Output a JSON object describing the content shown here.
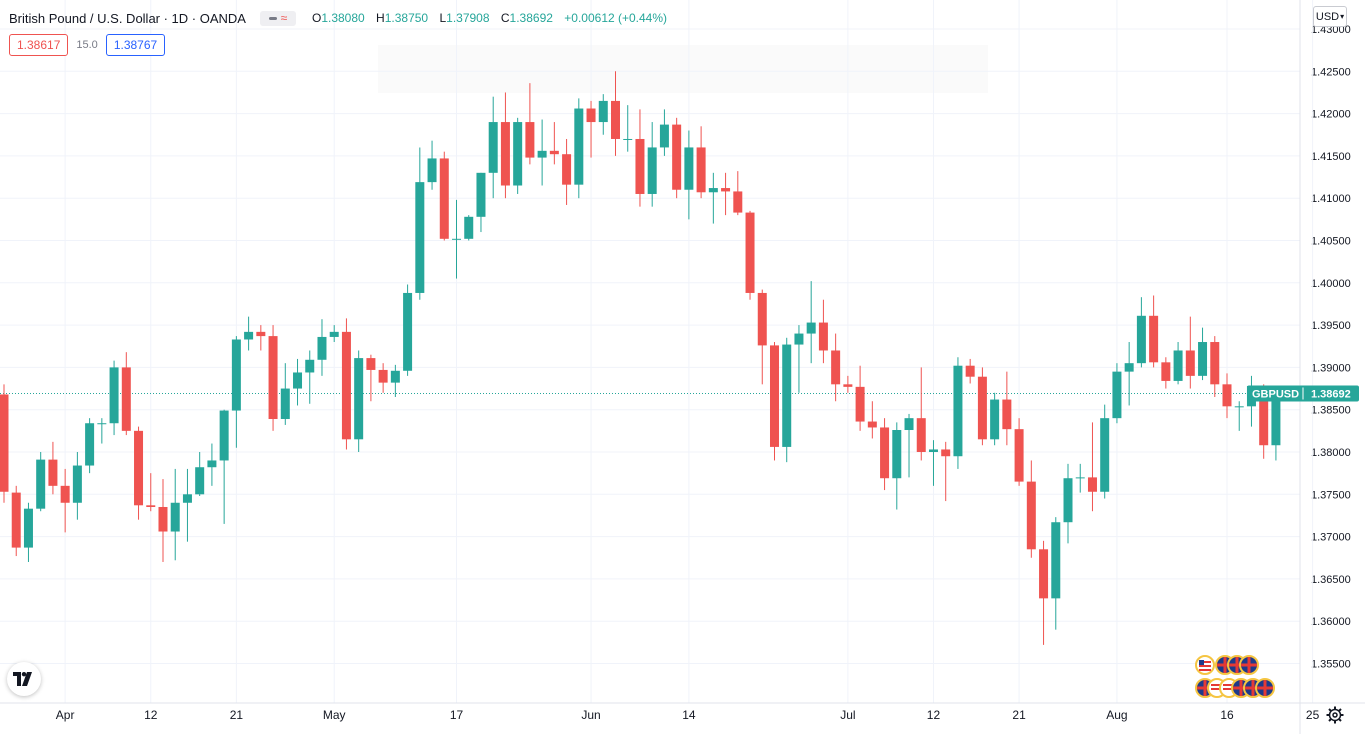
{
  "header": {
    "title": "British Pound / U.S. Dollar · 1D · OANDA",
    "ohlc": {
      "o_label": "O",
      "o": "1.38080",
      "h_label": "H",
      "h": "1.38750",
      "l_label": "L",
      "l": "1.37908",
      "c_label": "C",
      "c": "1.38692",
      "change": "+0.00612 (+0.44%)"
    }
  },
  "trade": {
    "sell": "1.38617",
    "spread": "15.0",
    "buy": "1.38767"
  },
  "currency": "USD",
  "last_price_label": {
    "symbol": "GBPUSD",
    "price": "1.38692"
  },
  "colors": {
    "up": "#26a69a",
    "down": "#ef5350",
    "grid": "#f0f3fa",
    "text": "#131722"
  },
  "icons": {
    "logo": "tradingview-logo-icon",
    "settings": "gear-icon",
    "indicators": "indicator-toggle-icon",
    "events": "economic-events-flags-icon"
  },
  "chart_data": {
    "type": "candlestick",
    "symbol": "GBPUSD",
    "ylim": [
      1.352,
      1.4305
    ],
    "y_ticks": [
      "1.43000",
      "1.42500",
      "1.42000",
      "1.41500",
      "1.41000",
      "1.40500",
      "1.40000",
      "1.39500",
      "1.39000",
      "1.38500",
      "1.38000",
      "1.37500",
      "1.37000",
      "1.36500",
      "1.36000",
      "1.35500"
    ],
    "x_ticks": [
      {
        "label": "Apr",
        "index": 5
      },
      {
        "label": "12",
        "index": 12
      },
      {
        "label": "21",
        "index": 19
      },
      {
        "label": "May",
        "index": 27
      },
      {
        "label": "17",
        "index": 37
      },
      {
        "label": "Jun",
        "index": 48
      },
      {
        "label": "14",
        "index": 56
      },
      {
        "label": "Jul",
        "index": 69
      },
      {
        "label": "12",
        "index": 76
      },
      {
        "label": "21",
        "index": 83
      },
      {
        "label": "Aug",
        "index": 91
      },
      {
        "label": "16",
        "index": 100
      },
      {
        "label": "25",
        "index": 107
      }
    ],
    "last_price": 1.38692,
    "candles": [
      {
        "o": 1.3868,
        "h": 1.388,
        "l": 1.374,
        "c": 1.3753
      },
      {
        "o": 1.3752,
        "h": 1.376,
        "l": 1.3677,
        "c": 1.3687
      },
      {
        "o": 1.3687,
        "h": 1.374,
        "l": 1.367,
        "c": 1.3733
      },
      {
        "o": 1.3733,
        "h": 1.38,
        "l": 1.373,
        "c": 1.3791
      },
      {
        "o": 1.3791,
        "h": 1.3812,
        "l": 1.375,
        "c": 1.376
      },
      {
        "o": 1.376,
        "h": 1.378,
        "l": 1.3705,
        "c": 1.374
      },
      {
        "o": 1.374,
        "h": 1.38,
        "l": 1.372,
        "c": 1.3784
      },
      {
        "o": 1.3784,
        "h": 1.384,
        "l": 1.3775,
        "c": 1.3834
      },
      {
        "o": 1.3834,
        "h": 1.384,
        "l": 1.381,
        "c": 1.3834
      },
      {
        "o": 1.3834,
        "h": 1.3908,
        "l": 1.382,
        "c": 1.39
      },
      {
        "o": 1.39,
        "h": 1.3918,
        "l": 1.382,
        "c": 1.3825
      },
      {
        "o": 1.3825,
        "h": 1.383,
        "l": 1.372,
        "c": 1.3737
      },
      {
        "o": 1.3737,
        "h": 1.3775,
        "l": 1.373,
        "c": 1.3735
      },
      {
        "o": 1.3735,
        "h": 1.3768,
        "l": 1.367,
        "c": 1.3706
      },
      {
        "o": 1.3706,
        "h": 1.378,
        "l": 1.3672,
        "c": 1.374
      },
      {
        "o": 1.374,
        "h": 1.378,
        "l": 1.3694,
        "c": 1.375
      },
      {
        "o": 1.375,
        "h": 1.38,
        "l": 1.3748,
        "c": 1.3782
      },
      {
        "o": 1.3782,
        "h": 1.381,
        "l": 1.376,
        "c": 1.379
      },
      {
        "o": 1.379,
        "h": 1.385,
        "l": 1.3715,
        "c": 1.3849
      },
      {
        "o": 1.3849,
        "h": 1.3937,
        "l": 1.3805,
        "c": 1.3933
      },
      {
        "o": 1.3933,
        "h": 1.396,
        "l": 1.392,
        "c": 1.3942
      },
      {
        "o": 1.3942,
        "h": 1.395,
        "l": 1.392,
        "c": 1.3937
      },
      {
        "o": 1.3937,
        "h": 1.395,
        "l": 1.3825,
        "c": 1.3839
      },
      {
        "o": 1.3839,
        "h": 1.3905,
        "l": 1.3832,
        "c": 1.3875
      },
      {
        "o": 1.3875,
        "h": 1.391,
        "l": 1.3855,
        "c": 1.3894
      },
      {
        "o": 1.3894,
        "h": 1.392,
        "l": 1.3857,
        "c": 1.3909
      },
      {
        "o": 1.3909,
        "h": 1.3957,
        "l": 1.389,
        "c": 1.3936
      },
      {
        "o": 1.3936,
        "h": 1.395,
        "l": 1.393,
        "c": 1.3942
      },
      {
        "o": 1.3942,
        "h": 1.3958,
        "l": 1.3803,
        "c": 1.3815
      },
      {
        "o": 1.3815,
        "h": 1.392,
        "l": 1.38,
        "c": 1.3911
      },
      {
        "o": 1.3911,
        "h": 1.3915,
        "l": 1.386,
        "c": 1.3897
      },
      {
        "o": 1.3897,
        "h": 1.3905,
        "l": 1.387,
        "c": 1.3882
      },
      {
        "o": 1.3882,
        "h": 1.3903,
        "l": 1.3865,
        "c": 1.3896
      },
      {
        "o": 1.3896,
        "h": 1.3998,
        "l": 1.389,
        "c": 1.3988
      },
      {
        "o": 1.3988,
        "h": 1.416,
        "l": 1.398,
        "c": 1.4119
      },
      {
        "o": 1.4119,
        "h": 1.4168,
        "l": 1.411,
        "c": 1.4147
      },
      {
        "o": 1.4147,
        "h": 1.4155,
        "l": 1.405,
        "c": 1.4052
      },
      {
        "o": 1.4052,
        "h": 1.4098,
        "l": 1.4005,
        "c": 1.4052
      },
      {
        "o": 1.4052,
        "h": 1.408,
        "l": 1.405,
        "c": 1.4078
      },
      {
        "o": 1.4078,
        "h": 1.413,
        "l": 1.406,
        "c": 1.413
      },
      {
        "o": 1.413,
        "h": 1.422,
        "l": 1.41,
        "c": 1.419
      },
      {
        "o": 1.419,
        "h": 1.4225,
        "l": 1.41,
        "c": 1.4115
      },
      {
        "o": 1.4115,
        "h": 1.4195,
        "l": 1.4105,
        "c": 1.419
      },
      {
        "o": 1.419,
        "h": 1.4236,
        "l": 1.414,
        "c": 1.4148
      },
      {
        "o": 1.4148,
        "h": 1.4193,
        "l": 1.4115,
        "c": 1.4156
      },
      {
        "o": 1.4156,
        "h": 1.419,
        "l": 1.414,
        "c": 1.4152
      },
      {
        "o": 1.4152,
        "h": 1.417,
        "l": 1.4092,
        "c": 1.4116
      },
      {
        "o": 1.4116,
        "h": 1.4218,
        "l": 1.41,
        "c": 1.4206
      },
      {
        "o": 1.4206,
        "h": 1.4215,
        "l": 1.4148,
        "c": 1.419
      },
      {
        "o": 1.419,
        "h": 1.4223,
        "l": 1.4175,
        "c": 1.4215
      },
      {
        "o": 1.4215,
        "h": 1.425,
        "l": 1.415,
        "c": 1.417
      },
      {
        "o": 1.417,
        "h": 1.421,
        "l": 1.4155,
        "c": 1.417
      },
      {
        "o": 1.417,
        "h": 1.4205,
        "l": 1.409,
        "c": 1.4105
      },
      {
        "o": 1.4105,
        "h": 1.419,
        "l": 1.409,
        "c": 1.416
      },
      {
        "o": 1.416,
        "h": 1.4205,
        "l": 1.415,
        "c": 1.4187
      },
      {
        "o": 1.4187,
        "h": 1.4195,
        "l": 1.41,
        "c": 1.411
      },
      {
        "o": 1.411,
        "h": 1.418,
        "l": 1.4075,
        "c": 1.416
      },
      {
        "o": 1.416,
        "h": 1.4185,
        "l": 1.41,
        "c": 1.4107
      },
      {
        "o": 1.4107,
        "h": 1.413,
        "l": 1.407,
        "c": 1.4112
      },
      {
        "o": 1.4112,
        "h": 1.413,
        "l": 1.408,
        "c": 1.4108
      },
      {
        "o": 1.4108,
        "h": 1.4132,
        "l": 1.408,
        "c": 1.4083
      },
      {
        "o": 1.4083,
        "h": 1.4085,
        "l": 1.398,
        "c": 1.3988
      },
      {
        "o": 1.3988,
        "h": 1.3992,
        "l": 1.388,
        "c": 1.3926
      },
      {
        "o": 1.3926,
        "h": 1.393,
        "l": 1.379,
        "c": 1.3806
      },
      {
        "o": 1.3806,
        "h": 1.3935,
        "l": 1.3788,
        "c": 1.3927
      },
      {
        "o": 1.3927,
        "h": 1.395,
        "l": 1.387,
        "c": 1.394
      },
      {
        "o": 1.394,
        "h": 1.4002,
        "l": 1.3905,
        "c": 1.3953
      },
      {
        "o": 1.3953,
        "h": 1.398,
        "l": 1.3905,
        "c": 1.392
      },
      {
        "o": 1.392,
        "h": 1.394,
        "l": 1.386,
        "c": 1.388
      },
      {
        "o": 1.388,
        "h": 1.389,
        "l": 1.387,
        "c": 1.3877
      },
      {
        "o": 1.3877,
        "h": 1.3902,
        "l": 1.3825,
        "c": 1.3836
      },
      {
        "o": 1.3836,
        "h": 1.386,
        "l": 1.3816,
        "c": 1.3829
      },
      {
        "o": 1.3829,
        "h": 1.384,
        "l": 1.3755,
        "c": 1.3769
      },
      {
        "o": 1.3769,
        "h": 1.3835,
        "l": 1.3732,
        "c": 1.3826
      },
      {
        "o": 1.3826,
        "h": 1.3845,
        "l": 1.377,
        "c": 1.384
      },
      {
        "o": 1.384,
        "h": 1.39,
        "l": 1.379,
        "c": 1.38
      },
      {
        "o": 1.38,
        "h": 1.3814,
        "l": 1.376,
        "c": 1.3803
      },
      {
        "o": 1.3803,
        "h": 1.3812,
        "l": 1.3742,
        "c": 1.3795
      },
      {
        "o": 1.3795,
        "h": 1.3912,
        "l": 1.378,
        "c": 1.3902
      },
      {
        "o": 1.3902,
        "h": 1.391,
        "l": 1.3881,
        "c": 1.3889
      },
      {
        "o": 1.3889,
        "h": 1.39,
        "l": 1.3808,
        "c": 1.3815
      },
      {
        "o": 1.3815,
        "h": 1.387,
        "l": 1.3808,
        "c": 1.3862
      },
      {
        "o": 1.3862,
        "h": 1.3895,
        "l": 1.3808,
        "c": 1.3827
      },
      {
        "o": 1.3827,
        "h": 1.384,
        "l": 1.376,
        "c": 1.3765
      },
      {
        "o": 1.3765,
        "h": 1.379,
        "l": 1.3675,
        "c": 1.3685
      },
      {
        "o": 1.3685,
        "h": 1.3695,
        "l": 1.3572,
        "c": 1.3627
      },
      {
        "o": 1.3627,
        "h": 1.3723,
        "l": 1.359,
        "c": 1.3717
      },
      {
        "o": 1.3717,
        "h": 1.3786,
        "l": 1.3692,
        "c": 1.3769
      },
      {
        "o": 1.3769,
        "h": 1.3786,
        "l": 1.3752,
        "c": 1.377
      },
      {
        "o": 1.377,
        "h": 1.3835,
        "l": 1.373,
        "c": 1.3753
      },
      {
        "o": 1.3753,
        "h": 1.3856,
        "l": 1.3745,
        "c": 1.384
      },
      {
        "o": 1.384,
        "h": 1.3905,
        "l": 1.3834,
        "c": 1.3895
      },
      {
        "o": 1.3895,
        "h": 1.393,
        "l": 1.3855,
        "c": 1.3905
      },
      {
        "o": 1.3905,
        "h": 1.3983,
        "l": 1.39,
        "c": 1.3961
      },
      {
        "o": 1.3961,
        "h": 1.3985,
        "l": 1.39,
        "c": 1.3906
      },
      {
        "o": 1.3906,
        "h": 1.3912,
        "l": 1.3875,
        "c": 1.3884
      },
      {
        "o": 1.3884,
        "h": 1.393,
        "l": 1.388,
        "c": 1.392
      },
      {
        "o": 1.392,
        "h": 1.396,
        "l": 1.3875,
        "c": 1.389
      },
      {
        "o": 1.389,
        "h": 1.3947,
        "l": 1.3885,
        "c": 1.393
      },
      {
        "o": 1.393,
        "h": 1.3937,
        "l": 1.3865,
        "c": 1.388
      },
      {
        "o": 1.388,
        "h": 1.3893,
        "l": 1.384,
        "c": 1.3854
      },
      {
        "o": 1.3854,
        "h": 1.386,
        "l": 1.3825,
        "c": 1.3854
      },
      {
        "o": 1.3854,
        "h": 1.389,
        "l": 1.383,
        "c": 1.3878
      },
      {
        "o": 1.3878,
        "h": 1.388,
        "l": 1.3792,
        "c": 1.3808
      },
      {
        "o": 1.3808,
        "h": 1.3875,
        "l": 1.379,
        "c": 1.3869
      }
    ]
  }
}
